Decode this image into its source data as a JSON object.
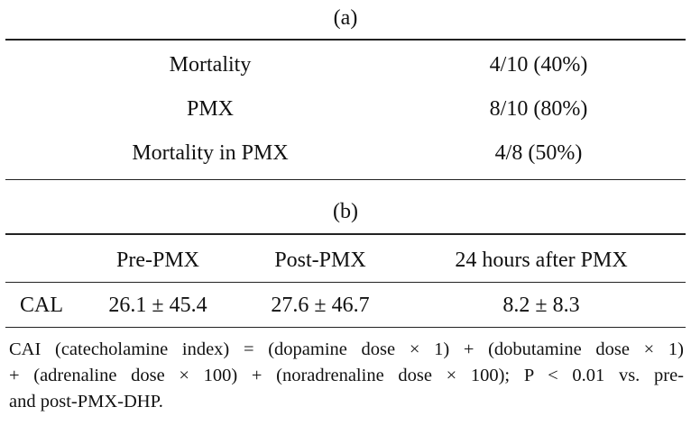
{
  "table_a": {
    "caption": "(a)",
    "rows": [
      {
        "label": "Mortality",
        "value": "4/10 (40%)"
      },
      {
        "label": "PMX",
        "value": "8/10 (80%)"
      },
      {
        "label": "Mortality in PMX",
        "value": "4/8 (50%)"
      }
    ]
  },
  "table_b": {
    "caption": "(b)",
    "headers": [
      "",
      "Pre-PMX",
      "Post-PMX",
      "24 hours after PMX"
    ],
    "row": {
      "label": "CAL",
      "values": [
        "26.1 ± 45.4",
        "27.6 ± 46.7",
        "8.2 ± 8.3"
      ]
    }
  },
  "footnote": {
    "line1": "CAI (catecholamine index) = (dopamine dose × 1) + (dobutamine dose × 1)",
    "line2": "+ (adrenaline dose × 100) + (noradrenaline dose × 100); P < 0.01 vs. pre-",
    "line3": "and post-PMX-DHP."
  }
}
